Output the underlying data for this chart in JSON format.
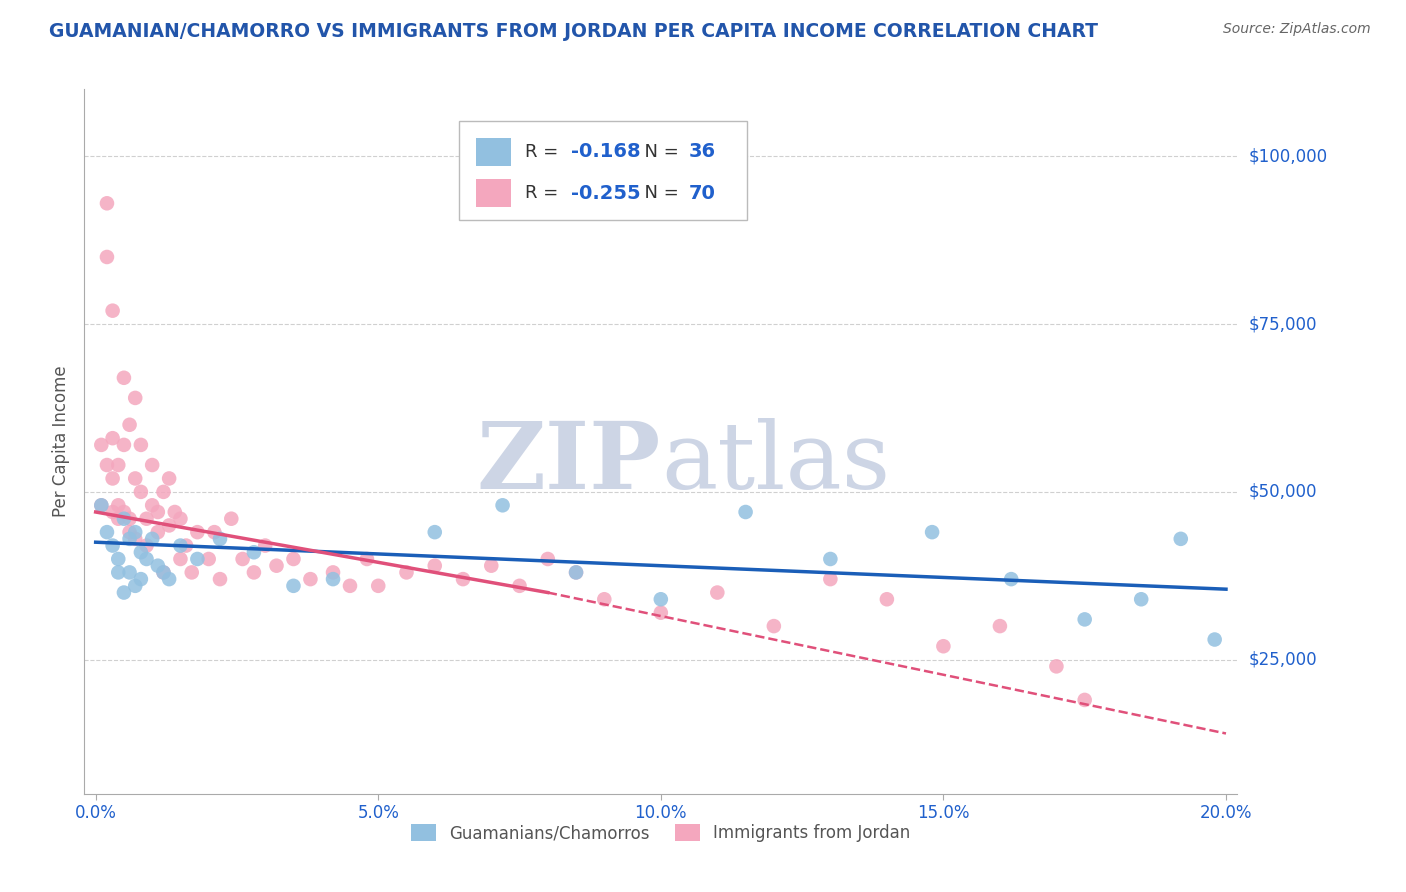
{
  "title": "GUAMANIAN/CHAMORRO VS IMMIGRANTS FROM JORDAN PER CAPITA INCOME CORRELATION CHART",
  "source": "Source: ZipAtlas.com",
  "ylabel": "Per Capita Income",
  "xlim": [
    -0.002,
    0.202
  ],
  "ylim": [
    5000,
    110000
  ],
  "yticks": [
    25000,
    50000,
    75000,
    100000
  ],
  "ytick_labels": [
    "$25,000",
    "$50,000",
    "$75,000",
    "$100,000"
  ],
  "xtick_labels": [
    "0.0%",
    "5.0%",
    "10.0%",
    "15.0%",
    "20.0%"
  ],
  "xticks": [
    0.0,
    0.05,
    0.1,
    0.15,
    0.2
  ],
  "group1_color": "#92c0e0",
  "group2_color": "#f4a7be",
  "group1_name": "Guamanians/Chamorros",
  "group2_name": "Immigrants from Jordan",
  "group1_R": "-0.168",
  "group1_N": "36",
  "group2_R": "-0.255",
  "group2_N": "70",
  "line1_color": "#1a5eb8",
  "line2_color": "#e0507a",
  "watermark_color": "#cdd5e5",
  "background_color": "#ffffff",
  "grid_color": "#d0d0d0",
  "title_color": "#2255aa",
  "axis_color": "#2060cc",
  "legend_text_color": "#333333",
  "source_color": "#666666",
  "ylabel_color": "#555555",
  "group1_x": [
    0.001,
    0.002,
    0.003,
    0.004,
    0.004,
    0.005,
    0.005,
    0.006,
    0.006,
    0.007,
    0.007,
    0.008,
    0.008,
    0.009,
    0.01,
    0.011,
    0.012,
    0.013,
    0.015,
    0.018,
    0.022,
    0.028,
    0.035,
    0.042,
    0.06,
    0.072,
    0.085,
    0.1,
    0.115,
    0.13,
    0.148,
    0.162,
    0.175,
    0.185,
    0.192,
    0.198
  ],
  "group1_y": [
    48000,
    44000,
    42000,
    40000,
    38000,
    46000,
    35000,
    43000,
    38000,
    44000,
    36000,
    41000,
    37000,
    40000,
    43000,
    39000,
    38000,
    37000,
    42000,
    40000,
    43000,
    41000,
    36000,
    37000,
    44000,
    48000,
    38000,
    34000,
    47000,
    40000,
    44000,
    37000,
    31000,
    34000,
    43000,
    28000
  ],
  "group2_x": [
    0.001,
    0.001,
    0.002,
    0.002,
    0.002,
    0.003,
    0.003,
    0.003,
    0.003,
    0.004,
    0.004,
    0.004,
    0.005,
    0.005,
    0.005,
    0.006,
    0.006,
    0.006,
    0.007,
    0.007,
    0.007,
    0.008,
    0.008,
    0.009,
    0.009,
    0.01,
    0.01,
    0.011,
    0.011,
    0.012,
    0.012,
    0.013,
    0.013,
    0.014,
    0.015,
    0.015,
    0.016,
    0.017,
    0.018,
    0.02,
    0.021,
    0.022,
    0.024,
    0.026,
    0.028,
    0.03,
    0.032,
    0.035,
    0.038,
    0.042,
    0.045,
    0.048,
    0.05,
    0.055,
    0.06,
    0.065,
    0.07,
    0.075,
    0.08,
    0.085,
    0.09,
    0.1,
    0.11,
    0.12,
    0.13,
    0.14,
    0.15,
    0.16,
    0.17,
    0.175
  ],
  "group2_y": [
    57000,
    48000,
    54000,
    85000,
    93000,
    52000,
    58000,
    47000,
    77000,
    46000,
    54000,
    48000,
    67000,
    47000,
    57000,
    46000,
    60000,
    44000,
    52000,
    43000,
    64000,
    50000,
    57000,
    46000,
    42000,
    48000,
    54000,
    47000,
    44000,
    50000,
    38000,
    52000,
    45000,
    47000,
    40000,
    46000,
    42000,
    38000,
    44000,
    40000,
    44000,
    37000,
    46000,
    40000,
    38000,
    42000,
    39000,
    40000,
    37000,
    38000,
    36000,
    40000,
    36000,
    38000,
    39000,
    37000,
    39000,
    36000,
    40000,
    38000,
    34000,
    32000,
    35000,
    30000,
    37000,
    34000,
    27000,
    30000,
    24000,
    19000
  ],
  "line1_x0": 0.0,
  "line1_y0": 42500,
  "line1_x1": 0.2,
  "line1_y1": 35500,
  "line2_x0": 0.0,
  "line2_y0": 47000,
  "line2_x1": 0.08,
  "line2_y1": 35000,
  "line2_dash_x0": 0.08,
  "line2_dash_y0": 35000,
  "line2_dash_x1": 0.2,
  "line2_dash_y1": 14000
}
